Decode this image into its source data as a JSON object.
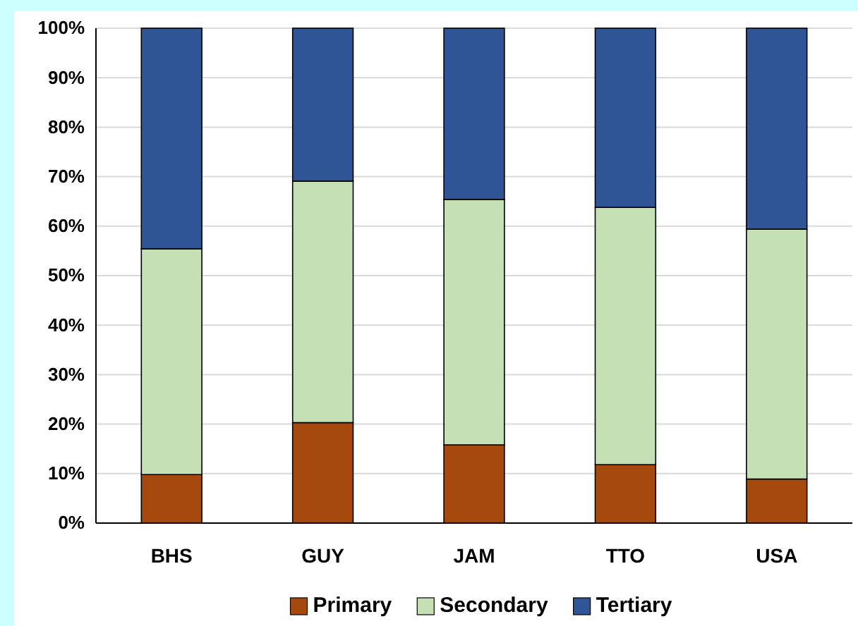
{
  "chart_data": {
    "type": "bar",
    "stacked": true,
    "categories": [
      "BHS",
      "GUY",
      "JAM",
      "TTO",
      "USA"
    ],
    "series": [
      {
        "name": "Primary",
        "color": "#a5490f",
        "values": [
          9.8,
          20.3,
          15.8,
          11.8,
          8.9
        ]
      },
      {
        "name": "Secondary",
        "color": "#c5e0b4",
        "values": [
          45.6,
          48.8,
          49.6,
          52.0,
          50.5
        ]
      },
      {
        "name": "Tertiary",
        "color": "#2f5597",
        "values": [
          44.6,
          30.9,
          34.6,
          36.2,
          40.6
        ]
      }
    ],
    "ylim": [
      0,
      100
    ],
    "yticks": [
      {
        "value": 0,
        "label": "0%"
      },
      {
        "value": 10,
        "label": "10%"
      },
      {
        "value": 20,
        "label": "20%"
      },
      {
        "value": 30,
        "label": "30%"
      },
      {
        "value": 40,
        "label": "40%"
      },
      {
        "value": 50,
        "label": "50%"
      },
      {
        "value": 60,
        "label": "60%"
      },
      {
        "value": 70,
        "label": "70%"
      },
      {
        "value": 80,
        "label": "80%"
      },
      {
        "value": 90,
        "label": "90%"
      },
      {
        "value": 100,
        "label": "100%"
      }
    ],
    "grid": "y",
    "legend": "bottom"
  }
}
